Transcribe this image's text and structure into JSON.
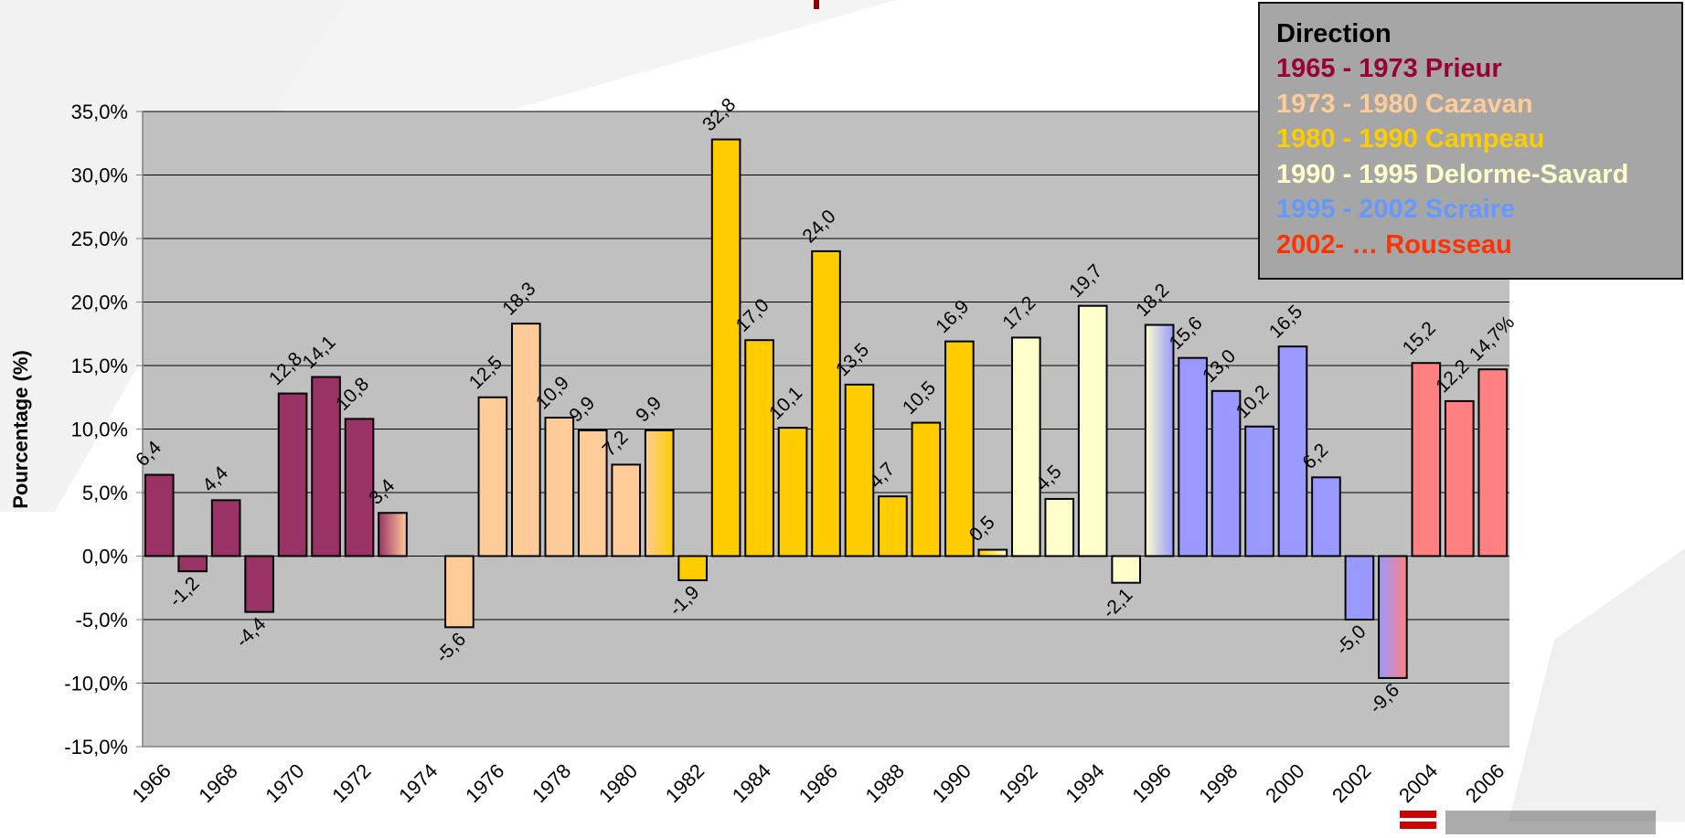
{
  "chart_data": {
    "type": "bar",
    "title": "",
    "xlabel": "",
    "ylabel": "Pourcentage (%)",
    "ylim": [
      -15,
      35
    ],
    "yticks": [
      35,
      30,
      25,
      20,
      15,
      10,
      5,
      0,
      -5,
      -10,
      -15
    ],
    "ytick_labels": [
      "35,0%",
      "30,0%",
      "25,0%",
      "20,0%",
      "15,0%",
      "10,0%",
      "5,0%",
      "0,0%",
      "-5,0%",
      "-10,0%",
      "-15,0%"
    ],
    "grid": true,
    "legend_position": "top-right",
    "years": [
      1966,
      1967,
      1968,
      1969,
      1970,
      1971,
      1972,
      1973,
      1974,
      1975,
      1976,
      1977,
      1978,
      1979,
      1980,
      1981,
      1982,
      1983,
      1984,
      1985,
      1986,
      1987,
      1988,
      1989,
      1990,
      1991,
      1992,
      1993,
      1994,
      1995,
      1996,
      1997,
      1998,
      1999,
      2000,
      2001,
      2002,
      2003,
      2004,
      2005,
      2006
    ],
    "x_tick_labels": [
      "1966",
      "1968",
      "1970",
      "1972",
      "1974",
      "1976",
      "1978",
      "1980",
      "1982",
      "1984",
      "1986",
      "1988",
      "1990",
      "1992",
      "1994",
      "1996",
      "1998",
      "2000",
      "2002",
      "2004",
      "2006"
    ],
    "values": [
      6.4,
      -1.2,
      4.4,
      -4.4,
      12.8,
      14.1,
      10.8,
      3.4,
      null,
      -5.6,
      12.5,
      18.3,
      10.9,
      9.9,
      7.2,
      9.9,
      -1.9,
      32.8,
      17.0,
      10.1,
      24.0,
      13.5,
      4.7,
      10.5,
      16.9,
      0.5,
      17.2,
      4.5,
      19.7,
      -2.1,
      18.2,
      15.6,
      13.0,
      10.2,
      16.5,
      6.2,
      -5.0,
      -9.6,
      15.2,
      12.2,
      14.7
    ],
    "value_labels": [
      "6,4",
      "-1,2",
      "4,4",
      "-4,4",
      "12,8",
      "14,1",
      "10,8",
      "3,4",
      "",
      "-5,6",
      "12,5",
      "18,3",
      "10,9",
      "9,9",
      "7,2",
      "9,9",
      "-1,9",
      "32,8",
      "17,0",
      "10,1",
      "24,0",
      "13,5",
      "4,7",
      "10,5",
      "16,9",
      "0,5",
      "17,2",
      "4,5",
      "19,7",
      "-2,1",
      "18,2",
      "15,6",
      "13,0",
      "10,2",
      "16,5",
      "6,2",
      "-5,0",
      "-9,6",
      "15,2",
      "12,2",
      "14,7%"
    ],
    "bar_colors": [
      "#993366",
      "#993366",
      "#993366",
      "#993366",
      "#993366",
      "#993366",
      "#993366",
      [
        "#993366",
        "#ffcc99"
      ],
      null,
      "#ffcc99",
      "#ffcc99",
      "#ffcc99",
      "#ffcc99",
      "#ffcc99",
      "#ffcc99",
      [
        "#ffcc99",
        "#ffcc00"
      ],
      "#ffcc00",
      "#ffcc00",
      "#ffcc00",
      "#ffcc00",
      "#ffcc00",
      "#ffcc00",
      "#ffcc00",
      "#ffcc00",
      "#ffcc00",
      [
        "#ffcc00",
        "#ffffcc"
      ],
      "#ffffcc",
      "#ffffcc",
      "#ffffcc",
      "#ffffcc",
      [
        "#ffffcc",
        "#9999ff"
      ],
      "#9999ff",
      "#9999ff",
      "#9999ff",
      "#9999ff",
      "#9999ff",
      "#9999ff",
      [
        "#9999ff",
        "#ff8080"
      ],
      "#ff8080",
      "#ff8080",
      "#ff8080"
    ],
    "colors": {
      "plot_background": "#c0c0c0",
      "grid": "#000000"
    }
  },
  "legend": {
    "title": "Direction",
    "items": [
      {
        "label": "1965 - 1973 Prieur",
        "color": "#990033"
      },
      {
        "label": "1973 - 1980 Cazavan",
        "color": "#ffcc99"
      },
      {
        "label": "1980 - 1990 Campeau",
        "color": "#ffcc00"
      },
      {
        "label": "1990 - 1995 Delorme-Savard",
        "color": "#ffffcc"
      },
      {
        "label": "1995 - 2002 Scraire",
        "color": "#6699ff"
      },
      {
        "label": "2002- … Rousseau",
        "color": "#ff3300"
      }
    ]
  }
}
